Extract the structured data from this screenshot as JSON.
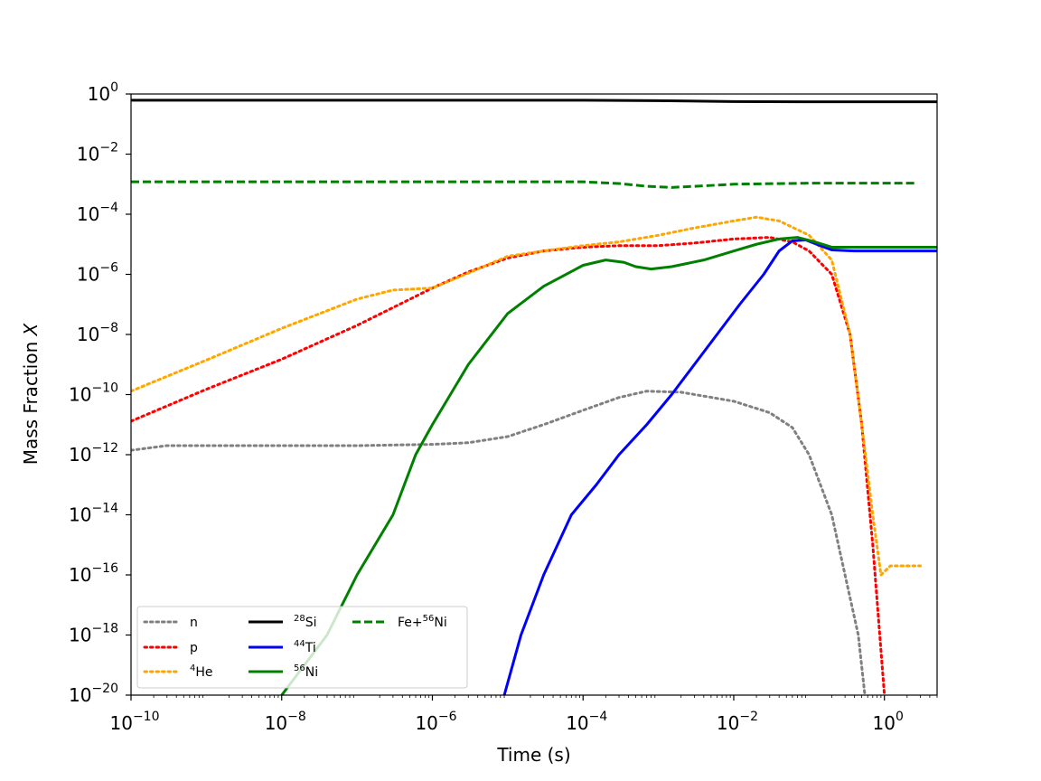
{
  "chart_data": {
    "type": "line",
    "title": "",
    "xlabel": "Time (s)",
    "ylabel_main": "Mass Fraction ",
    "ylabel_var": "X",
    "xscale": "log",
    "yscale": "log",
    "xlim": [
      1e-10,
      5
    ],
    "ylim": [
      1e-20,
      1
    ],
    "grid": false,
    "legend_position": "lower-left",
    "legend_columns": 3,
    "x_ticks": [
      {
        "base": "10",
        "exp": "−10",
        "value": 1e-10
      },
      {
        "base": "10",
        "exp": "−8",
        "value": 1e-08
      },
      {
        "base": "10",
        "exp": "−6",
        "value": 1e-06
      },
      {
        "base": "10",
        "exp": "−4",
        "value": 0.0001
      },
      {
        "base": "10",
        "exp": "−2",
        "value": 0.01
      },
      {
        "base": "10",
        "exp": "0",
        "value": 1
      }
    ],
    "y_ticks": [
      {
        "base": "10",
        "exp": "0",
        "value": 1
      },
      {
        "base": "10",
        "exp": "−2",
        "value": 0.01
      },
      {
        "base": "10",
        "exp": "−4",
        "value": 0.0001
      },
      {
        "base": "10",
        "exp": "−6",
        "value": 1e-06
      },
      {
        "base": "10",
        "exp": "−8",
        "value": 1e-08
      },
      {
        "base": "10",
        "exp": "−10",
        "value": 1e-10
      },
      {
        "base": "10",
        "exp": "−12",
        "value": 1e-12
      },
      {
        "base": "10",
        "exp": "−14",
        "value": 1e-14
      },
      {
        "base": "10",
        "exp": "−16",
        "value": 1e-16
      },
      {
        "base": "10",
        "exp": "−18",
        "value": 1e-18
      },
      {
        "base": "10",
        "exp": "−20",
        "value": 1e-20
      }
    ],
    "series": [
      {
        "key": "n",
        "name_sup": "",
        "name_base": "n",
        "color": "#808080",
        "style": "dotted",
        "points": [
          [
            1e-10,
            1.4e-12
          ],
          [
            3e-10,
            2e-12
          ],
          [
            1e-09,
            2e-12
          ],
          [
            1e-08,
            2e-12
          ],
          [
            1e-07,
            2e-12
          ],
          [
            1e-06,
            2.2e-12
          ],
          [
            3e-06,
            2.5e-12
          ],
          [
            1e-05,
            4e-12
          ],
          [
            3e-05,
            1e-11
          ],
          [
            0.0001,
            3e-11
          ],
          [
            0.0003,
            8e-11
          ],
          [
            0.0007,
            1.3e-10
          ],
          [
            0.002,
            1.2e-10
          ],
          [
            0.01,
            6e-11
          ],
          [
            0.03,
            2.5e-11
          ],
          [
            0.06,
            8e-12
          ],
          [
            0.1,
            1e-12
          ],
          [
            0.2,
            1e-14
          ],
          [
            0.3,
            1e-16
          ],
          [
            0.45,
            1e-18
          ],
          [
            0.55,
            1e-20
          ]
        ]
      },
      {
        "key": "p",
        "name_sup": "",
        "name_base": "p",
        "color": "#ff0000",
        "style": "dotted",
        "points": [
          [
            1e-10,
            1.3e-11
          ],
          [
            1e-09,
            1.5e-10
          ],
          [
            1e-08,
            1.5e-09
          ],
          [
            1e-07,
            2e-08
          ],
          [
            1e-06,
            3.5e-07
          ],
          [
            3e-06,
            1.2e-06
          ],
          [
            1e-05,
            3.5e-06
          ],
          [
            3e-05,
            6e-06
          ],
          [
            0.0001,
            8e-06
          ],
          [
            0.0003,
            9e-06
          ],
          [
            0.001,
            9e-06
          ],
          [
            0.003,
            1.1e-05
          ],
          [
            0.01,
            1.5e-05
          ],
          [
            0.03,
            1.7e-05
          ],
          [
            0.06,
            1.2e-05
          ],
          [
            0.1,
            6e-06
          ],
          [
            0.2,
            1e-06
          ],
          [
            0.35,
            1e-08
          ],
          [
            0.5,
            1e-11
          ],
          [
            0.7,
            1e-15
          ],
          [
            1.0,
            1e-20
          ]
        ]
      },
      {
        "key": "he4",
        "name_sup": "4",
        "name_base": "He",
        "color": "#ffa500",
        "style": "dotted",
        "points": [
          [
            1e-10,
            1.3e-10
          ],
          [
            1e-09,
            1.4e-09
          ],
          [
            1e-08,
            1.6e-08
          ],
          [
            1e-07,
            1.5e-07
          ],
          [
            3e-07,
            3e-07
          ],
          [
            1e-06,
            3.5e-07
          ],
          [
            3e-06,
            1.1e-06
          ],
          [
            1e-05,
            4e-06
          ],
          [
            3e-05,
            6e-06
          ],
          [
            0.0001,
            9e-06
          ],
          [
            0.0003,
            1.2e-05
          ],
          [
            0.001,
            2e-05
          ],
          [
            0.003,
            3.5e-05
          ],
          [
            0.01,
            6e-05
          ],
          [
            0.02,
            8e-05
          ],
          [
            0.04,
            6e-05
          ],
          [
            0.1,
            2e-05
          ],
          [
            0.2,
            3e-06
          ],
          [
            0.35,
            1e-08
          ],
          [
            0.5,
            1e-11
          ],
          [
            0.7,
            1e-14
          ],
          [
            0.9,
            1e-16
          ],
          [
            1.2,
            2e-16
          ],
          [
            3,
            2e-16
          ]
        ]
      },
      {
        "key": "si28",
        "name_sup": "28",
        "name_base": "Si",
        "color": "#000000",
        "style": "solid",
        "points": [
          [
            1e-10,
            0.62
          ],
          [
            1e-08,
            0.62
          ],
          [
            1e-06,
            0.62
          ],
          [
            0.0001,
            0.62
          ],
          [
            0.001,
            0.6
          ],
          [
            0.01,
            0.56
          ],
          [
            0.1,
            0.55
          ],
          [
            1,
            0.55
          ],
          [
            5,
            0.55
          ]
        ]
      },
      {
        "key": "ti44",
        "name_sup": "44",
        "name_base": "Ti",
        "color": "#0000ff",
        "style": "solid",
        "points": [
          [
            9e-06,
            1e-20
          ],
          [
            1.5e-05,
            1e-18
          ],
          [
            3e-05,
            1e-16
          ],
          [
            7e-05,
            1e-14
          ],
          [
            0.00015,
            1e-13
          ],
          [
            0.0003,
            1e-12
          ],
          [
            0.0007,
            1e-11
          ],
          [
            0.0015,
            1e-10
          ],
          [
            0.003,
            1e-09
          ],
          [
            0.006,
            1e-08
          ],
          [
            0.012,
            1e-07
          ],
          [
            0.025,
            1e-06
          ],
          [
            0.04,
            6e-06
          ],
          [
            0.06,
            1.3e-05
          ],
          [
            0.09,
            1.4e-05
          ],
          [
            0.14,
            9e-06
          ],
          [
            0.2,
            6.5e-06
          ],
          [
            0.4,
            6e-06
          ],
          [
            1,
            6e-06
          ],
          [
            5,
            6e-06
          ]
        ]
      },
      {
        "key": "ni56",
        "name_sup": "56",
        "name_base": "Ni",
        "color": "#008000",
        "style": "solid",
        "points": [
          [
            1e-08,
            1e-20
          ],
          [
            2e-08,
            1e-19
          ],
          [
            4e-08,
            1e-18
          ],
          [
            1e-07,
            1e-16
          ],
          [
            3e-07,
            1e-14
          ],
          [
            6e-07,
            1e-12
          ],
          [
            1e-06,
            1e-11
          ],
          [
            3e-06,
            1e-09
          ],
          [
            1e-05,
            5e-08
          ],
          [
            3e-05,
            4e-07
          ],
          [
            0.0001,
            2e-06
          ],
          [
            0.0002,
            3e-06
          ],
          [
            0.00035,
            2.5e-06
          ],
          [
            0.0005,
            1.8e-06
          ],
          [
            0.0008,
            1.5e-06
          ],
          [
            0.0015,
            1.8e-06
          ],
          [
            0.004,
            3e-06
          ],
          [
            0.01,
            6e-06
          ],
          [
            0.02,
            1e-05
          ],
          [
            0.04,
            1.5e-05
          ],
          [
            0.07,
            1.7e-05
          ],
          [
            0.12,
            1.2e-05
          ],
          [
            0.2,
            8e-06
          ],
          [
            0.5,
            8e-06
          ],
          [
            1,
            8e-06
          ],
          [
            5,
            8e-06
          ]
        ]
      },
      {
        "key": "feni56",
        "name_sup": "56",
        "name_base": "Fe+",
        "name_tail": "Ni",
        "color": "#008000",
        "style": "dashed",
        "points": [
          [
            1e-10,
            0.0012
          ],
          [
            1e-08,
            0.0012
          ],
          [
            1e-06,
            0.0012
          ],
          [
            0.0001,
            0.0012
          ],
          [
            0.0003,
            0.00105
          ],
          [
            0.0007,
            0.00085
          ],
          [
            0.0015,
            0.00078
          ],
          [
            0.004,
            0.00088
          ],
          [
            0.01,
            0.001
          ],
          [
            0.1,
            0.00108
          ],
          [
            1,
            0.00108
          ],
          [
            2.5,
            0.00108
          ]
        ]
      }
    ]
  }
}
